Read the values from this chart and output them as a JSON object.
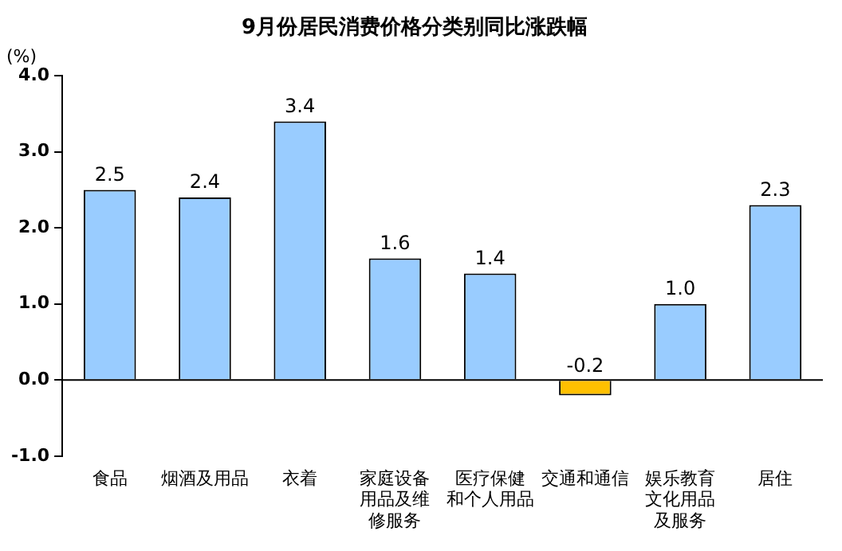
{
  "chart_data": {
    "type": "bar",
    "title": "9月份居民消费价格分类别同比涨跌幅",
    "ylabel": "(%)",
    "categories": [
      "食品",
      "烟酒及用品",
      "衣着",
      "家庭设备用品及维修服务",
      "医疗保健和个人用品",
      "交通和通信",
      "娱乐教育文化用品及服务",
      "居住"
    ],
    "values": [
      2.5,
      2.4,
      3.4,
      1.6,
      1.4,
      -0.2,
      1.0,
      2.3
    ],
    "colors": [
      "#99ccff",
      "#99ccff",
      "#99ccff",
      "#99ccff",
      "#99ccff",
      "#ffc000",
      "#99ccff",
      "#99ccff"
    ],
    "value_labels": [
      "2.5",
      "2.4",
      "3.4",
      "1.6",
      "1.4",
      "-0.2",
      "1.0",
      "2.3"
    ],
    "ylim": [
      -1,
      4
    ],
    "yticks": [
      {
        "value": -1,
        "label": "-1.0"
      },
      {
        "value": 0,
        "label": "0.0"
      },
      {
        "value": 1,
        "label": "1.0"
      },
      {
        "value": 2,
        "label": "2.0"
      },
      {
        "value": 3,
        "label": "3.0"
      },
      {
        "value": 4,
        "label": "4.0"
      }
    ],
    "ref_lines": [
      {
        "axis": "y",
        "value": 0
      }
    ],
    "grid": false,
    "legend": false
  }
}
